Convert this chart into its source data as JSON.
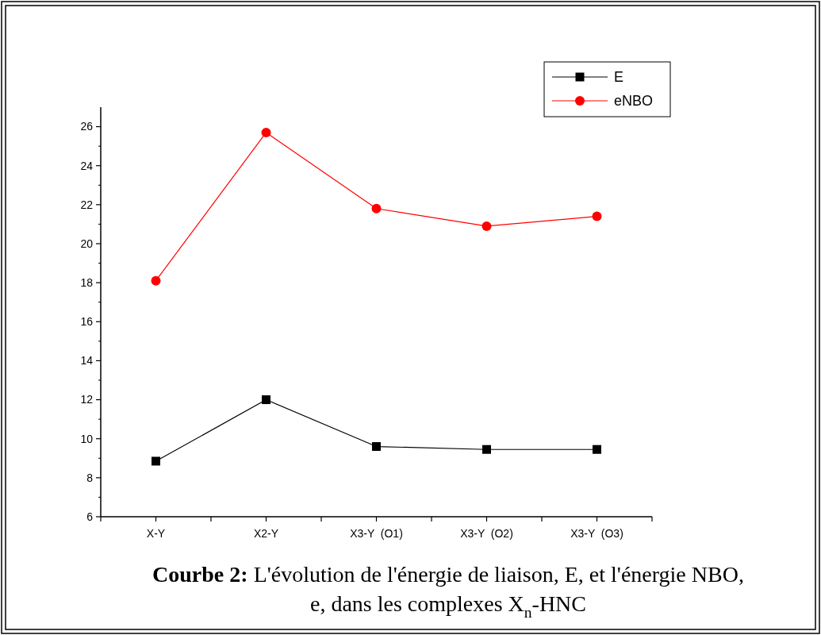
{
  "chart_data": {
    "type": "line",
    "categories": [
      "X-Y",
      "X2-Y",
      "X3-Y  (O1)",
      "X3-Y  (O2)",
      "X3-Y  (O3)"
    ],
    "series": [
      {
        "name": "E",
        "color": "#000000",
        "marker": "square",
        "values": [
          8.85,
          12,
          9.6,
          9.45,
          9.45
        ]
      },
      {
        "name": "eNBO",
        "color": "#ff0000",
        "marker": "circle",
        "values": [
          18.1,
          25.7,
          21.8,
          20.9,
          21.4
        ]
      }
    ],
    "ylim": [
      6,
      27
    ],
    "yticks": [
      6,
      8,
      10,
      12,
      14,
      16,
      18,
      20,
      22,
      24,
      26
    ],
    "grid": false,
    "legend": "top right",
    "annotations": [
      "Courbe 2: L'évolution de l'énergie de liaison, E, et l'énergie NBO, e, dans les complexes X$_{n}$-HNC"
    ]
  }
}
